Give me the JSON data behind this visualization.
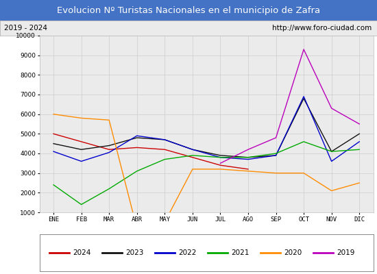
{
  "title": "Evolucion Nº Turistas Nacionales en el municipio de Zafra",
  "subtitle_left": "2019 - 2024",
  "subtitle_right": "http://www.foro-ciudad.com",
  "title_bg_color": "#4472c4",
  "title_text_color": "#ffffff",
  "subtitle_bg_color": "#ebebeb",
  "plot_bg_color": "#ebebeb",
  "months": [
    "ENE",
    "FEB",
    "MAR",
    "ABR",
    "MAY",
    "JUN",
    "JUL",
    "AGO",
    "SEP",
    "OCT",
    "NOV",
    "DIC"
  ],
  "ylim": [
    1000,
    10000
  ],
  "yticks": [
    1000,
    2000,
    3000,
    4000,
    5000,
    6000,
    7000,
    8000,
    9000,
    10000
  ],
  "series": [
    {
      "year": "2024",
      "color": "#cc0000",
      "data": [
        5000,
        4600,
        4200,
        4300,
        4200,
        3800,
        3400,
        3200,
        null,
        null,
        null,
        null
      ]
    },
    {
      "year": "2023",
      "color": "#111111",
      "data": [
        4500,
        4200,
        4400,
        4800,
        4700,
        4200,
        3900,
        3800,
        3900,
        6800,
        4100,
        5000
      ]
    },
    {
      "year": "2022",
      "color": "#0000cc",
      "data": [
        4100,
        3600,
        4050,
        4900,
        4700,
        4200,
        3800,
        3700,
        3900,
        6900,
        3600,
        4600
      ]
    },
    {
      "year": "2021",
      "color": "#00aa00",
      "data": [
        2400,
        1400,
        2200,
        3100,
        3700,
        3900,
        3800,
        3800,
        4000,
        4600,
        4100,
        4200
      ]
    },
    {
      "year": "2020",
      "color": "#ff8c00",
      "data": [
        6000,
        5800,
        5700,
        200,
        500,
        3200,
        3200,
        3100,
        3000,
        3000,
        2100,
        2500
      ]
    },
    {
      "year": "2019",
      "color": "#bb00bb",
      "data": [
        null,
        null,
        null,
        null,
        null,
        null,
        3500,
        4200,
        4800,
        9300,
        6300,
        5500
      ]
    }
  ],
  "legend_years": [
    "2024",
    "2023",
    "2022",
    "2021",
    "2020",
    "2019"
  ]
}
